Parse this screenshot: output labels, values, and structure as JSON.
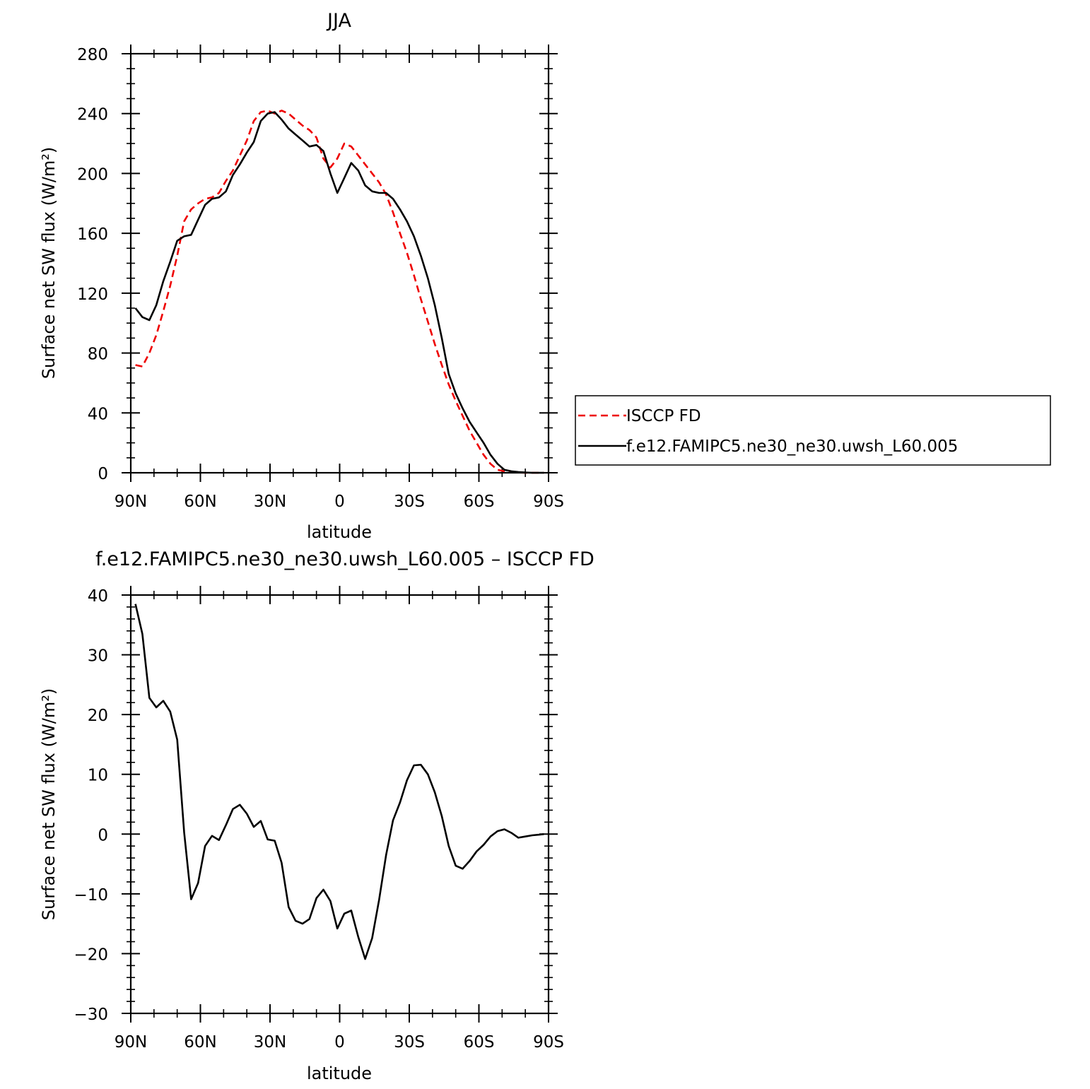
{
  "chart_data": [
    {
      "type": "line",
      "title": "JJA",
      "xlabel": "latitude",
      "ylabel": "Surface net SW flux (W/m²)",
      "xlim": [
        90,
        -90
      ],
      "ylim": [
        0,
        280
      ],
      "xticks": [
        90,
        60,
        30,
        0,
        -30,
        -60,
        -90
      ],
      "xtick_labels": [
        "90N",
        "60N",
        "30N",
        "0",
        "30S",
        "60S",
        "90S"
      ],
      "yticks": [
        0,
        40,
        80,
        120,
        160,
        200,
        240,
        280
      ],
      "ytick_labels": [
        "0",
        "40",
        "80",
        "120",
        "160",
        "200",
        "240",
        "280"
      ],
      "legend_position": "right",
      "series": [
        {
          "name": "ISCCP FD",
          "color": "#ee0000",
          "dash": "dashed",
          "x": [
            88,
            85,
            82,
            79,
            76,
            73,
            70,
            67,
            64,
            61,
            58,
            55,
            52,
            49,
            46,
            43,
            40,
            37,
            34,
            31,
            28,
            25,
            22,
            19,
            16,
            13,
            10,
            7,
            4,
            1,
            -2,
            -5,
            -8,
            -11,
            -14,
            -17,
            -20,
            -23,
            -26,
            -29,
            -32,
            -35,
            -38,
            -41,
            -44,
            -47,
            -50,
            -53,
            -56,
            -59,
            -62,
            -65,
            -68,
            -71,
            -74,
            -77,
            -80,
            -83,
            -86,
            -88
          ],
          "y": [
            72,
            71,
            80,
            92,
            108,
            125,
            145,
            168,
            176,
            180,
            183,
            184,
            187,
            195,
            202,
            212,
            222,
            235,
            241,
            242,
            240,
            242,
            240,
            236,
            232,
            229,
            224,
            210,
            204,
            210,
            220,
            218,
            212,
            206,
            200,
            194,
            186,
            174,
            160,
            147,
            132,
            116,
            101,
            86,
            72,
            59,
            48,
            38,
            28,
            20,
            12,
            6,
            2,
            1,
            0.5,
            0.2,
            0,
            0,
            0,
            0
          ]
        },
        {
          "name": "f.e12.FAMIPC5.ne30_ne30.uwsh_L60.005",
          "color": "#000000",
          "dash": "solid",
          "x": [
            88,
            85,
            82,
            79,
            76,
            73,
            70,
            67,
            64,
            61,
            58,
            55,
            52,
            49,
            46,
            43,
            40,
            37,
            34,
            31,
            28,
            25,
            22,
            19,
            16,
            13,
            10,
            7,
            4,
            1,
            -2,
            -5,
            -8,
            -11,
            -14,
            -17,
            -20,
            -23,
            -26,
            -29,
            -32,
            -35,
            -38,
            -41,
            -44,
            -47,
            -50,
            -53,
            -56,
            -59,
            -62,
            -65,
            -68,
            -71,
            -74,
            -77,
            -80,
            -83,
            -86,
            -88
          ],
          "y": [
            110,
            104,
            102,
            112,
            128,
            141,
            155,
            158,
            159,
            169,
            179,
            183,
            184,
            188,
            199,
            206,
            214,
            221,
            235,
            240,
            241,
            236,
            230,
            226,
            222,
            218,
            219,
            215,
            200,
            187,
            197,
            207,
            202,
            192,
            188,
            187,
            187,
            183,
            176,
            168,
            158,
            145,
            130,
            112,
            90,
            66,
            53,
            43,
            34,
            27,
            20,
            12,
            6,
            2,
            1,
            0.5,
            0.2,
            0,
            0,
            0
          ]
        }
      ]
    },
    {
      "type": "line",
      "title": "f.e12.FAMIPC5.ne30_ne30.uwsh_L60.005 – ISCCP FD",
      "xlabel": "latitude",
      "ylabel": "Surface net SW flux (W/m²)",
      "xlim": [
        90,
        -90
      ],
      "ylim": [
        -30,
        40
      ],
      "xticks": [
        90,
        60,
        30,
        0,
        -30,
        -60,
        -90
      ],
      "xtick_labels": [
        "90N",
        "60N",
        "30N",
        "0",
        "30S",
        "60S",
        "90S"
      ],
      "yticks": [
        -30,
        -20,
        -10,
        0,
        10,
        20,
        30,
        40
      ],
      "ytick_labels": [
        "−30",
        "−20",
        "−10",
        "0",
        "10",
        "20",
        "30",
        "40"
      ],
      "series": [
        {
          "color": "#000000",
          "dash": "solid",
          "x": [
            88,
            85,
            82,
            79,
            76,
            73,
            70,
            67,
            64,
            61,
            58,
            55,
            52,
            49,
            46,
            43,
            40,
            37,
            34,
            31,
            28,
            25,
            22,
            19,
            16,
            13,
            10,
            7,
            4,
            1,
            -2,
            -5,
            -8,
            -11,
            -14,
            -17,
            -20,
            -23,
            -26,
            -29,
            -32,
            -35,
            -38,
            -41,
            -44,
            -47,
            -50,
            -53,
            -56,
            -59,
            -62,
            -65,
            -68,
            -71,
            -74,
            -77,
            -80,
            -83,
            -86,
            -88
          ],
          "y": [
            38.5,
            33.5,
            22.8,
            21.2,
            22.3,
            20.5,
            15.8,
            0.3,
            -10.9,
            -8.2,
            -2,
            -0.3,
            -1,
            1.5,
            4.2,
            4.9,
            3.4,
            1.2,
            2.2,
            -0.9,
            -1.1,
            -4.8,
            -12.2,
            -14.5,
            -15,
            -14.2,
            -10.7,
            -9.3,
            -11.2,
            -15.8,
            -13.3,
            -12.8,
            -17.2,
            -20.9,
            -17.4,
            -11,
            -3.5,
            2.3,
            5.3,
            9,
            11.5,
            11.6,
            10,
            7,
            3,
            -2,
            -5.3,
            -5.8,
            -4.5,
            -2.9,
            -1.8,
            -0.4,
            0.5,
            0.8,
            0.2,
            -0.6,
            -0.4,
            -0.2,
            -0.1,
            0
          ]
        }
      ]
    }
  ]
}
